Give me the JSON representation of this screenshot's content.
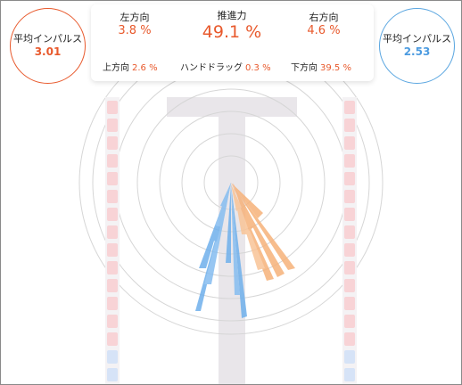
{
  "colors": {
    "orange": "#e8592c",
    "blue": "#4c9be0",
    "light_orange": "#f6b27a",
    "light_blue": "#6fb0ec"
  },
  "left_gauge": {
    "label": "平均インパルス",
    "value": "3.01"
  },
  "right_gauge": {
    "label": "平均インパルス",
    "value": "2.53"
  },
  "stats": {
    "left": {
      "label": "左方向",
      "value": "3.8 %"
    },
    "thrust": {
      "label": "推進力",
      "value": "49.1 %"
    },
    "right": {
      "label": "右方向",
      "value": "4.6 %"
    },
    "up": {
      "label": "上方向",
      "value": "2.6 %"
    },
    "hand_drag": {
      "label": "ハンドドラッグ",
      "value": "0.3 %"
    },
    "down": {
      "label": "下方向",
      "value": "39.5 %"
    }
  },
  "icons": [
    "swimmer-body-silhouette"
  ]
}
